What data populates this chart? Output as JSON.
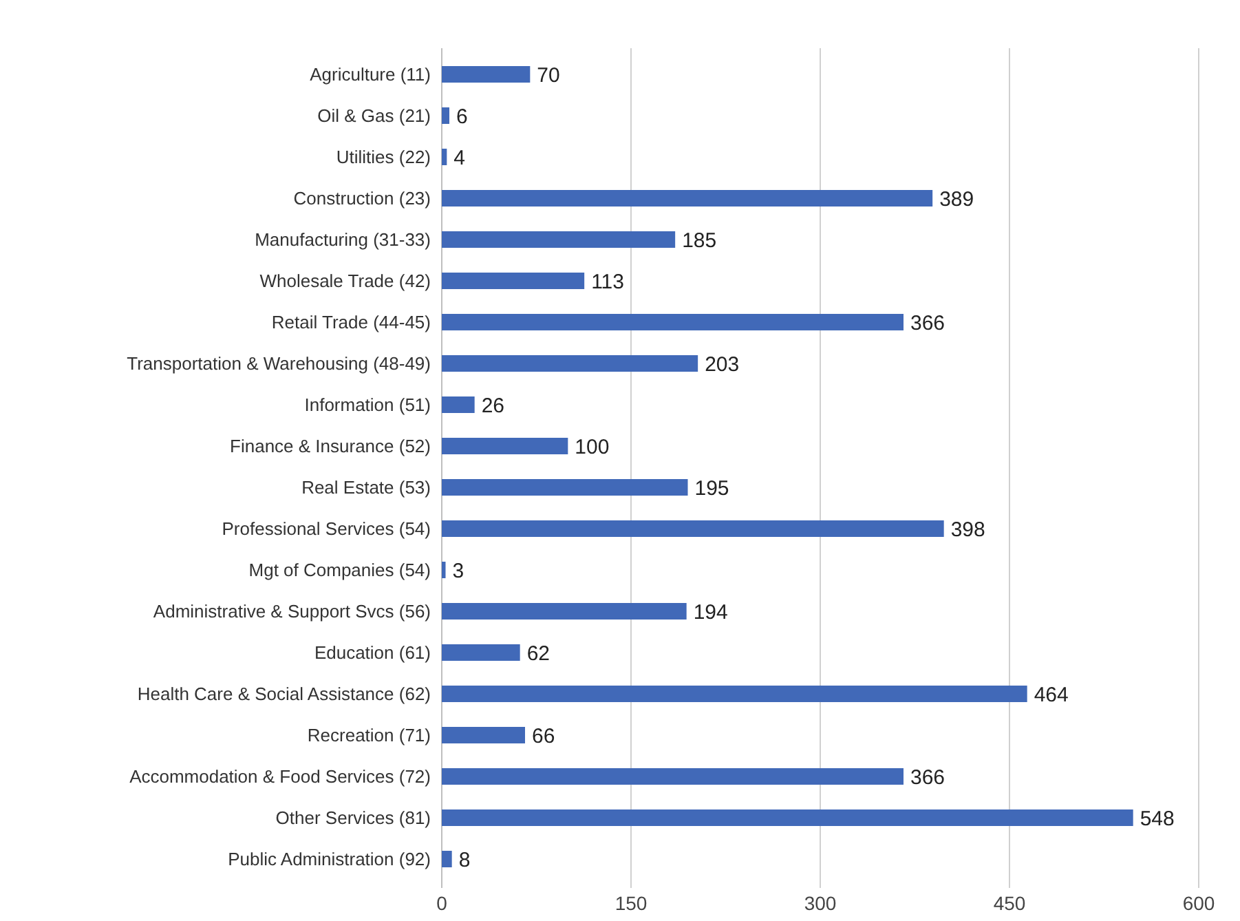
{
  "chart_data": {
    "type": "bar",
    "orientation": "horizontal",
    "categories": [
      "Agriculture (11)",
      "Oil & Gas (21)",
      "Utilities (22)",
      "Construction (23)",
      "Manufacturing (31-33)",
      "Wholesale Trade (42)",
      "Retail Trade (44-45)",
      "Transportation & Warehousing (48-49)",
      "Information (51)",
      "Finance & Insurance (52)",
      "Real Estate (53)",
      "Professional Services (54)",
      "Mgt of Companies (54)",
      "Administrative & Support Svcs (56)",
      "Education (61)",
      "Health Care & Social Assistance (62)",
      "Recreation (71)",
      "Accommodation & Food Services (72)",
      "Other Services (81)",
      "Public Administration (92)"
    ],
    "values": [
      70,
      6,
      4,
      389,
      185,
      113,
      366,
      203,
      26,
      100,
      195,
      398,
      3,
      194,
      62,
      464,
      66,
      366,
      548,
      8
    ],
    "color": "#4169b8",
    "xlim": [
      0,
      600
    ],
    "xticks": [
      0,
      150,
      300,
      450,
      600
    ],
    "grid": "x",
    "data_labels": true
  }
}
